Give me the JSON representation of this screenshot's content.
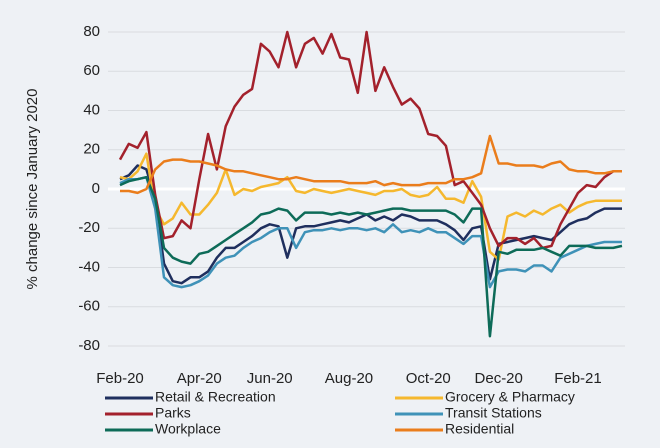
{
  "chart_data": {
    "type": "line",
    "y_label": "% change since January 2020",
    "categories": [
      "Feb-20",
      null,
      null,
      null,
      null,
      null,
      null,
      null,
      null,
      "Apr-20",
      null,
      null,
      null,
      null,
      null,
      null,
      null,
      "Jun-20",
      null,
      null,
      null,
      null,
      null,
      null,
      null,
      null,
      "Aug-20",
      null,
      null,
      null,
      null,
      null,
      null,
      null,
      null,
      "Oct-20",
      null,
      null,
      null,
      null,
      null,
      null,
      null,
      "Dec-20",
      null,
      null,
      null,
      null,
      null,
      null,
      null,
      null,
      "Feb-21",
      null,
      null,
      null,
      null,
      null
    ],
    "ylim": [
      -80,
      80
    ],
    "yticks": [
      -80,
      -60,
      -40,
      -20,
      0,
      20,
      40,
      60,
      80
    ],
    "grid": true,
    "legend": "bottom",
    "series": [
      {
        "name": "Retail & Recreation",
        "color": "#1f2f5e",
        "values": [
          5,
          7,
          12,
          10,
          -5,
          -38,
          -47,
          -48,
          -45,
          -45,
          -42,
          -35,
          -30,
          -30,
          -27,
          -24,
          -20,
          -18,
          -19,
          -35,
          -20,
          -19,
          -19,
          -18,
          -17,
          -16,
          -17,
          -15,
          -13,
          -16,
          -14,
          -16,
          -13,
          -14,
          -16,
          -16,
          -16,
          -18,
          -21,
          -26,
          -20,
          -19,
          -46,
          -28,
          -27,
          -26,
          -25,
          -24,
          -25,
          -26,
          -22,
          -18,
          -16,
          -15,
          -12,
          -10,
          -10,
          -10
        ]
      },
      {
        "name": "Grocery & Pharmacy",
        "color": "#f5b82e",
        "values": [
          6,
          5,
          9,
          18,
          -10,
          -18,
          -15,
          -7,
          -13,
          -13,
          -8,
          -2,
          10,
          -3,
          0,
          -1,
          1,
          2,
          3,
          6,
          -1,
          -2,
          0,
          -1,
          -2,
          -1,
          0,
          -1,
          -2,
          -3,
          -1,
          -1,
          0,
          -3,
          -4,
          -3,
          1,
          -5,
          -5,
          -7,
          4,
          -4,
          -32,
          -36,
          -14,
          -12,
          -14,
          -11,
          -13,
          -10,
          -8,
          -12,
          -9,
          -7,
          -6,
          -6,
          -6,
          -6
        ]
      },
      {
        "name": "Parks",
        "color": "#a3212c",
        "values": [
          15,
          23,
          21,
          29,
          -3,
          -25,
          -24,
          -16,
          -20,
          5,
          28,
          10,
          32,
          42,
          48,
          51,
          74,
          70,
          62,
          80,
          62,
          74,
          77,
          69,
          79,
          67,
          66,
          49,
          80,
          50,
          62,
          52,
          43,
          46,
          41,
          28,
          27,
          22,
          2,
          4,
          -2,
          -8,
          -20,
          -29,
          -25,
          -25,
          -28,
          -25,
          -30,
          -29,
          -18,
          -10,
          -2,
          2,
          1,
          6,
          9,
          9
        ]
      },
      {
        "name": "Transit Stations",
        "color": "#3f92b8",
        "values": [
          3,
          5,
          5,
          6,
          -10,
          -45,
          -49,
          -50,
          -49,
          -47,
          -44,
          -38,
          -35,
          -34,
          -30,
          -27,
          -25,
          -22,
          -20,
          -20,
          -30,
          -22,
          -21,
          -21,
          -20,
          -21,
          -20,
          -20,
          -21,
          -20,
          -22,
          -18,
          -22,
          -21,
          -22,
          -20,
          -22,
          -22,
          -25,
          -28,
          -24,
          -24,
          -50,
          -42,
          -41,
          -41,
          -42,
          -39,
          -39,
          -42,
          -35,
          -33,
          -31,
          -29,
          -28,
          -27,
          -27,
          -27
        ]
      },
      {
        "name": "Workplace",
        "color": "#0d6b58",
        "values": [
          2,
          4,
          5,
          6,
          -5,
          -30,
          -35,
          -37,
          -38,
          -33,
          -32,
          -29,
          -26,
          -23,
          -20,
          -17,
          -13,
          -12,
          -10,
          -11,
          -16,
          -12,
          -12,
          -12,
          -13,
          -12,
          -13,
          -12,
          -13,
          -12,
          -11,
          -10,
          -10,
          -11,
          -11,
          -11,
          -11,
          -11,
          -13,
          -17,
          -10,
          -10,
          -75,
          -32,
          -33,
          -31,
          -31,
          -31,
          -30,
          -32,
          -34,
          -29,
          -29,
          -29,
          -30,
          -30,
          -30,
          -29
        ]
      },
      {
        "name": "Residential",
        "color": "#ea7d1c",
        "values": [
          -1,
          -1,
          -2,
          0,
          10,
          14,
          15,
          15,
          14,
          14,
          13,
          12,
          10,
          9,
          9,
          8,
          7,
          6,
          5,
          5,
          6,
          5,
          4,
          4,
          4,
          4,
          3,
          3,
          3,
          4,
          2,
          3,
          2,
          2,
          2,
          3,
          3,
          3,
          5,
          5,
          6,
          8,
          27,
          13,
          13,
          12,
          12,
          12,
          11,
          13,
          14,
          10,
          9,
          9,
          8,
          8,
          9,
          9
        ]
      }
    ]
  }
}
